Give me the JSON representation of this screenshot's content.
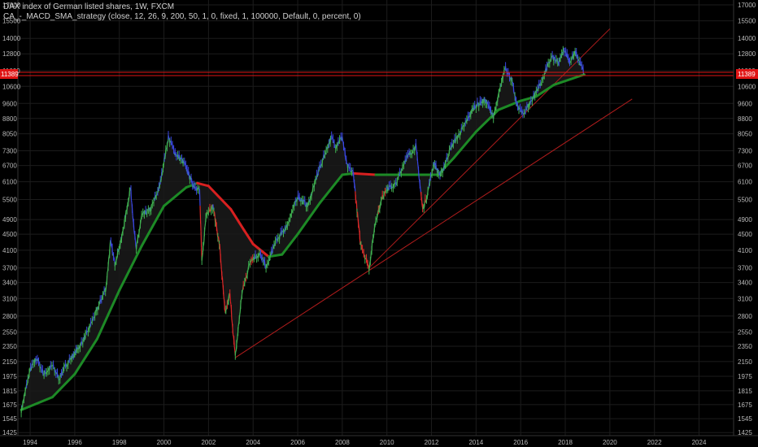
{
  "header": {
    "title": "DAX index of German listed shares, 1W, FXCM",
    "strategy": "CA_-_MACD_SMA_strategy (close, 12, 26, 9, 200, 50, 1, 0, fixed, 1, 100000, Default, 0, percent, 0)"
  },
  "colors": {
    "background": "#000000",
    "grid": "#1c1c1c",
    "price_up": "#3fb050",
    "price_down": "#3a46e0",
    "price_sell": "#e02828",
    "ma_trend": "#1d8a26",
    "ma_bear": "#d82020",
    "trendline": "#b01c1c",
    "current_price": "#e01414"
  },
  "chart_data": {
    "type": "line",
    "scale": "log",
    "xlim": [
      1993.45,
      2025.55
    ],
    "ylim": [
      1400,
      17000
    ],
    "y_ticks": [
      1425,
      1545,
      1675,
      1815,
      1975,
      2150,
      2350,
      2550,
      2800,
      3100,
      3400,
      3700,
      4100,
      4500,
      4900,
      5500,
      6100,
      6700,
      7300,
      8050,
      8800,
      9600,
      10600,
      11600,
      12800,
      14000,
      15500,
      17000
    ],
    "x_ticks": [
      "1994",
      "1996",
      "1998",
      "2000",
      "2002",
      "2004",
      "2006",
      "2008",
      "2010",
      "2012",
      "2014",
      "2016",
      "2018",
      "2020",
      "2022",
      "2024"
    ],
    "current_price": {
      "label": "11389",
      "value": 11389
    },
    "series": [
      {
        "key": "price",
        "points": [
          [
            1993.6,
            1625
          ],
          [
            1994.0,
            2050
          ],
          [
            1994.3,
            2200
          ],
          [
            1994.6,
            2000
          ],
          [
            1995.0,
            2100
          ],
          [
            1995.3,
            1950
          ],
          [
            1995.7,
            2150
          ],
          [
            1996.0,
            2250
          ],
          [
            1996.5,
            2500
          ],
          [
            1997.0,
            2900
          ],
          [
            1997.4,
            3300
          ],
          [
            1997.6,
            4300
          ],
          [
            1997.8,
            3800
          ],
          [
            1998.1,
            4400
          ],
          [
            1998.5,
            5900
          ],
          [
            1998.75,
            4100
          ],
          [
            1999.0,
            5000
          ],
          [
            1999.4,
            5200
          ],
          [
            1999.8,
            5900
          ],
          [
            2000.2,
            7900
          ],
          [
            2000.5,
            7200
          ],
          [
            2000.9,
            6800
          ],
          [
            2001.3,
            6000
          ],
          [
            2001.6,
            5800
          ],
          [
            2001.7,
            3800
          ],
          [
            2001.9,
            5100
          ],
          [
            2002.2,
            5300
          ],
          [
            2002.5,
            4200
          ],
          [
            2002.75,
            2800
          ],
          [
            2002.95,
            3200
          ],
          [
            2003.2,
            2200
          ],
          [
            2003.5,
            3200
          ],
          [
            2003.9,
            3900
          ],
          [
            2004.3,
            4000
          ],
          [
            2004.6,
            3700
          ],
          [
            2005.0,
            4300
          ],
          [
            2005.5,
            4700
          ],
          [
            2006.0,
            5600
          ],
          [
            2006.45,
            5300
          ],
          [
            2006.9,
            6400
          ],
          [
            2007.5,
            7900
          ],
          [
            2007.7,
            7500
          ],
          [
            2008.0,
            7900
          ],
          [
            2008.2,
            6700
          ],
          [
            2008.5,
            6400
          ],
          [
            2008.8,
            4300
          ],
          [
            2009.2,
            3700
          ],
          [
            2009.5,
            4900
          ],
          [
            2009.9,
            5800
          ],
          [
            2010.4,
            6000
          ],
          [
            2010.8,
            6900
          ],
          [
            2011.3,
            7500
          ],
          [
            2011.6,
            5200
          ],
          [
            2011.8,
            5600
          ],
          [
            2012.1,
            6800
          ],
          [
            2012.4,
            6300
          ],
          [
            2012.9,
            7500
          ],
          [
            2013.4,
            8300
          ],
          [
            2013.9,
            9400
          ],
          [
            2014.4,
            9800
          ],
          [
            2014.8,
            8900
          ],
          [
            2015.3,
            11900
          ],
          [
            2015.6,
            11000
          ],
          [
            2015.8,
            9600
          ],
          [
            2016.1,
            9000
          ],
          [
            2016.5,
            9800
          ],
          [
            2016.9,
            10800
          ],
          [
            2017.4,
            12600
          ],
          [
            2017.7,
            12100
          ],
          [
            2017.95,
            13200
          ],
          [
            2018.2,
            12200
          ],
          [
            2018.45,
            12900
          ],
          [
            2018.7,
            12000
          ],
          [
            2018.85,
            11389
          ]
        ]
      },
      {
        "key": "sma_slow",
        "points": [
          [
            1993.6,
            1625
          ],
          [
            1995.0,
            1750
          ],
          [
            1996.0,
            2000
          ],
          [
            1997.0,
            2450
          ],
          [
            1998.0,
            3250
          ],
          [
            1999.0,
            4200
          ],
          [
            2000.0,
            5300
          ],
          [
            2001.0,
            5900
          ],
          [
            2001.5,
            6050
          ],
          [
            2002.0,
            5950
          ],
          [
            2003.0,
            5200
          ],
          [
            2003.6,
            4600
          ],
          [
            2004.0,
            4250
          ],
          [
            2004.7,
            3950
          ],
          [
            2005.3,
            4000
          ],
          [
            2006.0,
            4500
          ],
          [
            2007.0,
            5400
          ],
          [
            2008.0,
            6350
          ],
          [
            2008.5,
            6400
          ],
          [
            2009.5,
            6350
          ],
          [
            2010.5,
            6350
          ],
          [
            2011.5,
            6350
          ],
          [
            2012.3,
            6350
          ],
          [
            2013.0,
            7000
          ],
          [
            2014.0,
            8150
          ],
          [
            2015.0,
            9250
          ],
          [
            2016.0,
            9750
          ],
          [
            2016.7,
            10000
          ],
          [
            2017.5,
            10700
          ],
          [
            2018.85,
            11350
          ]
        ]
      },
      {
        "key": "trendline_1",
        "points": [
          [
            2009.2,
            3700
          ],
          [
            2020.0,
            14800
          ]
        ]
      },
      {
        "key": "trendline_2",
        "points": [
          [
            2003.2,
            2200
          ],
          [
            2021.0,
            9850
          ]
        ]
      }
    ]
  }
}
